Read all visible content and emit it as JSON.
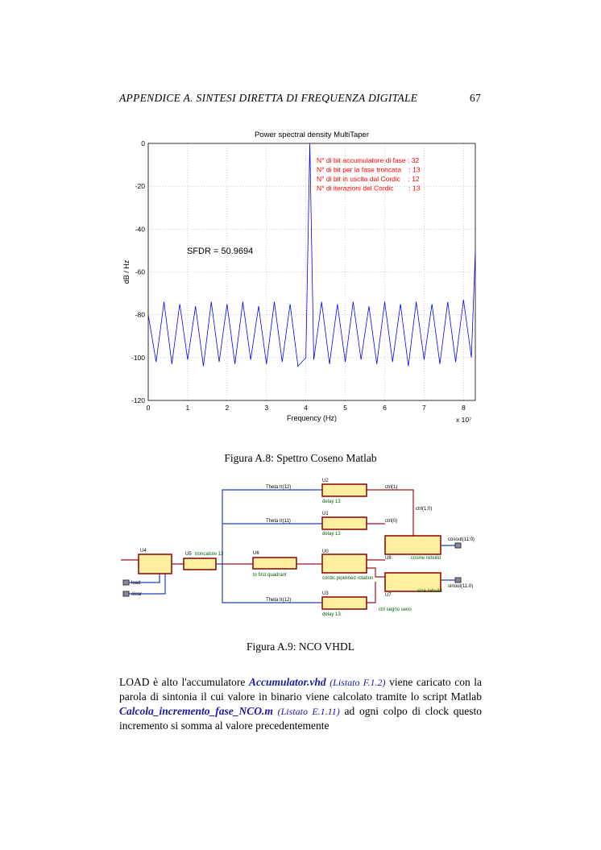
{
  "header": {
    "title": "APPENDICE A.  SINTESI DIRETTA DI FREQUENZA DIGITALE",
    "page": "67"
  },
  "chart_data": {
    "type": "line",
    "title": "Power spectral density MultiTaper",
    "xlabel": "Frequency (Hz)",
    "ylabel": "dB / Hz",
    "x_scale": "x 10⁷",
    "x": [
      0,
      0.2,
      0.4,
      0.6,
      0.8,
      1.0,
      1.2,
      1.4,
      1.6,
      1.8,
      2.0,
      2.2,
      2.4,
      2.6,
      2.8,
      3.0,
      3.2,
      3.4,
      3.6,
      3.8,
      4.0,
      4.1,
      4.2,
      4.4,
      4.6,
      4.8,
      5.0,
      5.2,
      5.4,
      5.6,
      5.8,
      6.0,
      6.2,
      6.4,
      6.6,
      6.8,
      7.0,
      7.2,
      7.4,
      7.6,
      7.8,
      8.0,
      8.2,
      8.3
    ],
    "values": [
      -80,
      -102,
      -74,
      -103,
      -75,
      -101,
      -76,
      -104,
      -74,
      -102,
      -75,
      -103,
      -74,
      -101,
      -76,
      -103,
      -74,
      -102,
      -75,
      -104,
      -100,
      0,
      -101,
      -74,
      -103,
      -75,
      -102,
      -74,
      -101,
      -76,
      -103,
      -74,
      -102,
      -75,
      -104,
      -74,
      -101,
      -75,
      -103,
      -74,
      -102,
      -73,
      -100,
      -50
    ],
    "color": "#0000ff",
    "xlim": [
      0,
      8.3
    ],
    "xticks": [
      0,
      1,
      2,
      3,
      4,
      5,
      6,
      7,
      8
    ],
    "ylim": [
      -120,
      0
    ],
    "yticks": [
      -120,
      -100,
      -80,
      -60,
      -40,
      -20,
      0
    ],
    "grid": true,
    "annotations": [
      "N° di bit accumulatore di fase : 32",
      "N° di bit per la fase troncata    : 13",
      "N° di bit in uscita dal Cordic    : 12",
      "N° di iterazioni del Cordic        : 13"
    ],
    "annotation_color": "#ff0000",
    "sfdr": "SFDR = 50.9694"
  },
  "figure_a8": {
    "caption": "Figura A.8: Spettro Coseno Matlab"
  },
  "diagram": {
    "nodes": [
      {
        "id": "U2",
        "label": "delay 13"
      },
      {
        "id": "U1",
        "label": "delay 13"
      },
      {
        "id": "U3",
        "label": "delay 13"
      },
      {
        "id": "U4"
      },
      {
        "id": "U5",
        "label": "troncatore 13"
      },
      {
        "id": "U6",
        "label": "to first quadrant"
      },
      {
        "id": "U0",
        "label": "cordic pipelined rotation"
      },
      {
        "id": "U8",
        "label": "cosine rebuild"
      },
      {
        "id": "U7",
        "label": "sine rebuild"
      }
    ],
    "signals": [
      "Theta tr(12)",
      "Theta tr(11)",
      "Theta tr(12)",
      "ctrl(1)",
      "ctrl(0)",
      "ctrl(1:0)",
      "load",
      "clear",
      "cosout(11:0)",
      "sinout(11:0)",
      "ctrl segno seno"
    ]
  },
  "figure_a9": {
    "caption": "Figura A.9: NCO VHDL"
  },
  "paragraph": [
    "LOAD è alto l'accumulatore ",
    "Accumulator.vhd",
    " ",
    "(Listato F.1.2)",
    " viene caricato con la parola di sintonia il cui valore in binario viene calcolato tramite lo script Matlab ",
    "Calcola_incremento_fase_NCO.m",
    " ",
    "(Listato E.1.11)",
    " ad ogni colpo di clock questo incremento si somma al valore precedentemente"
  ]
}
